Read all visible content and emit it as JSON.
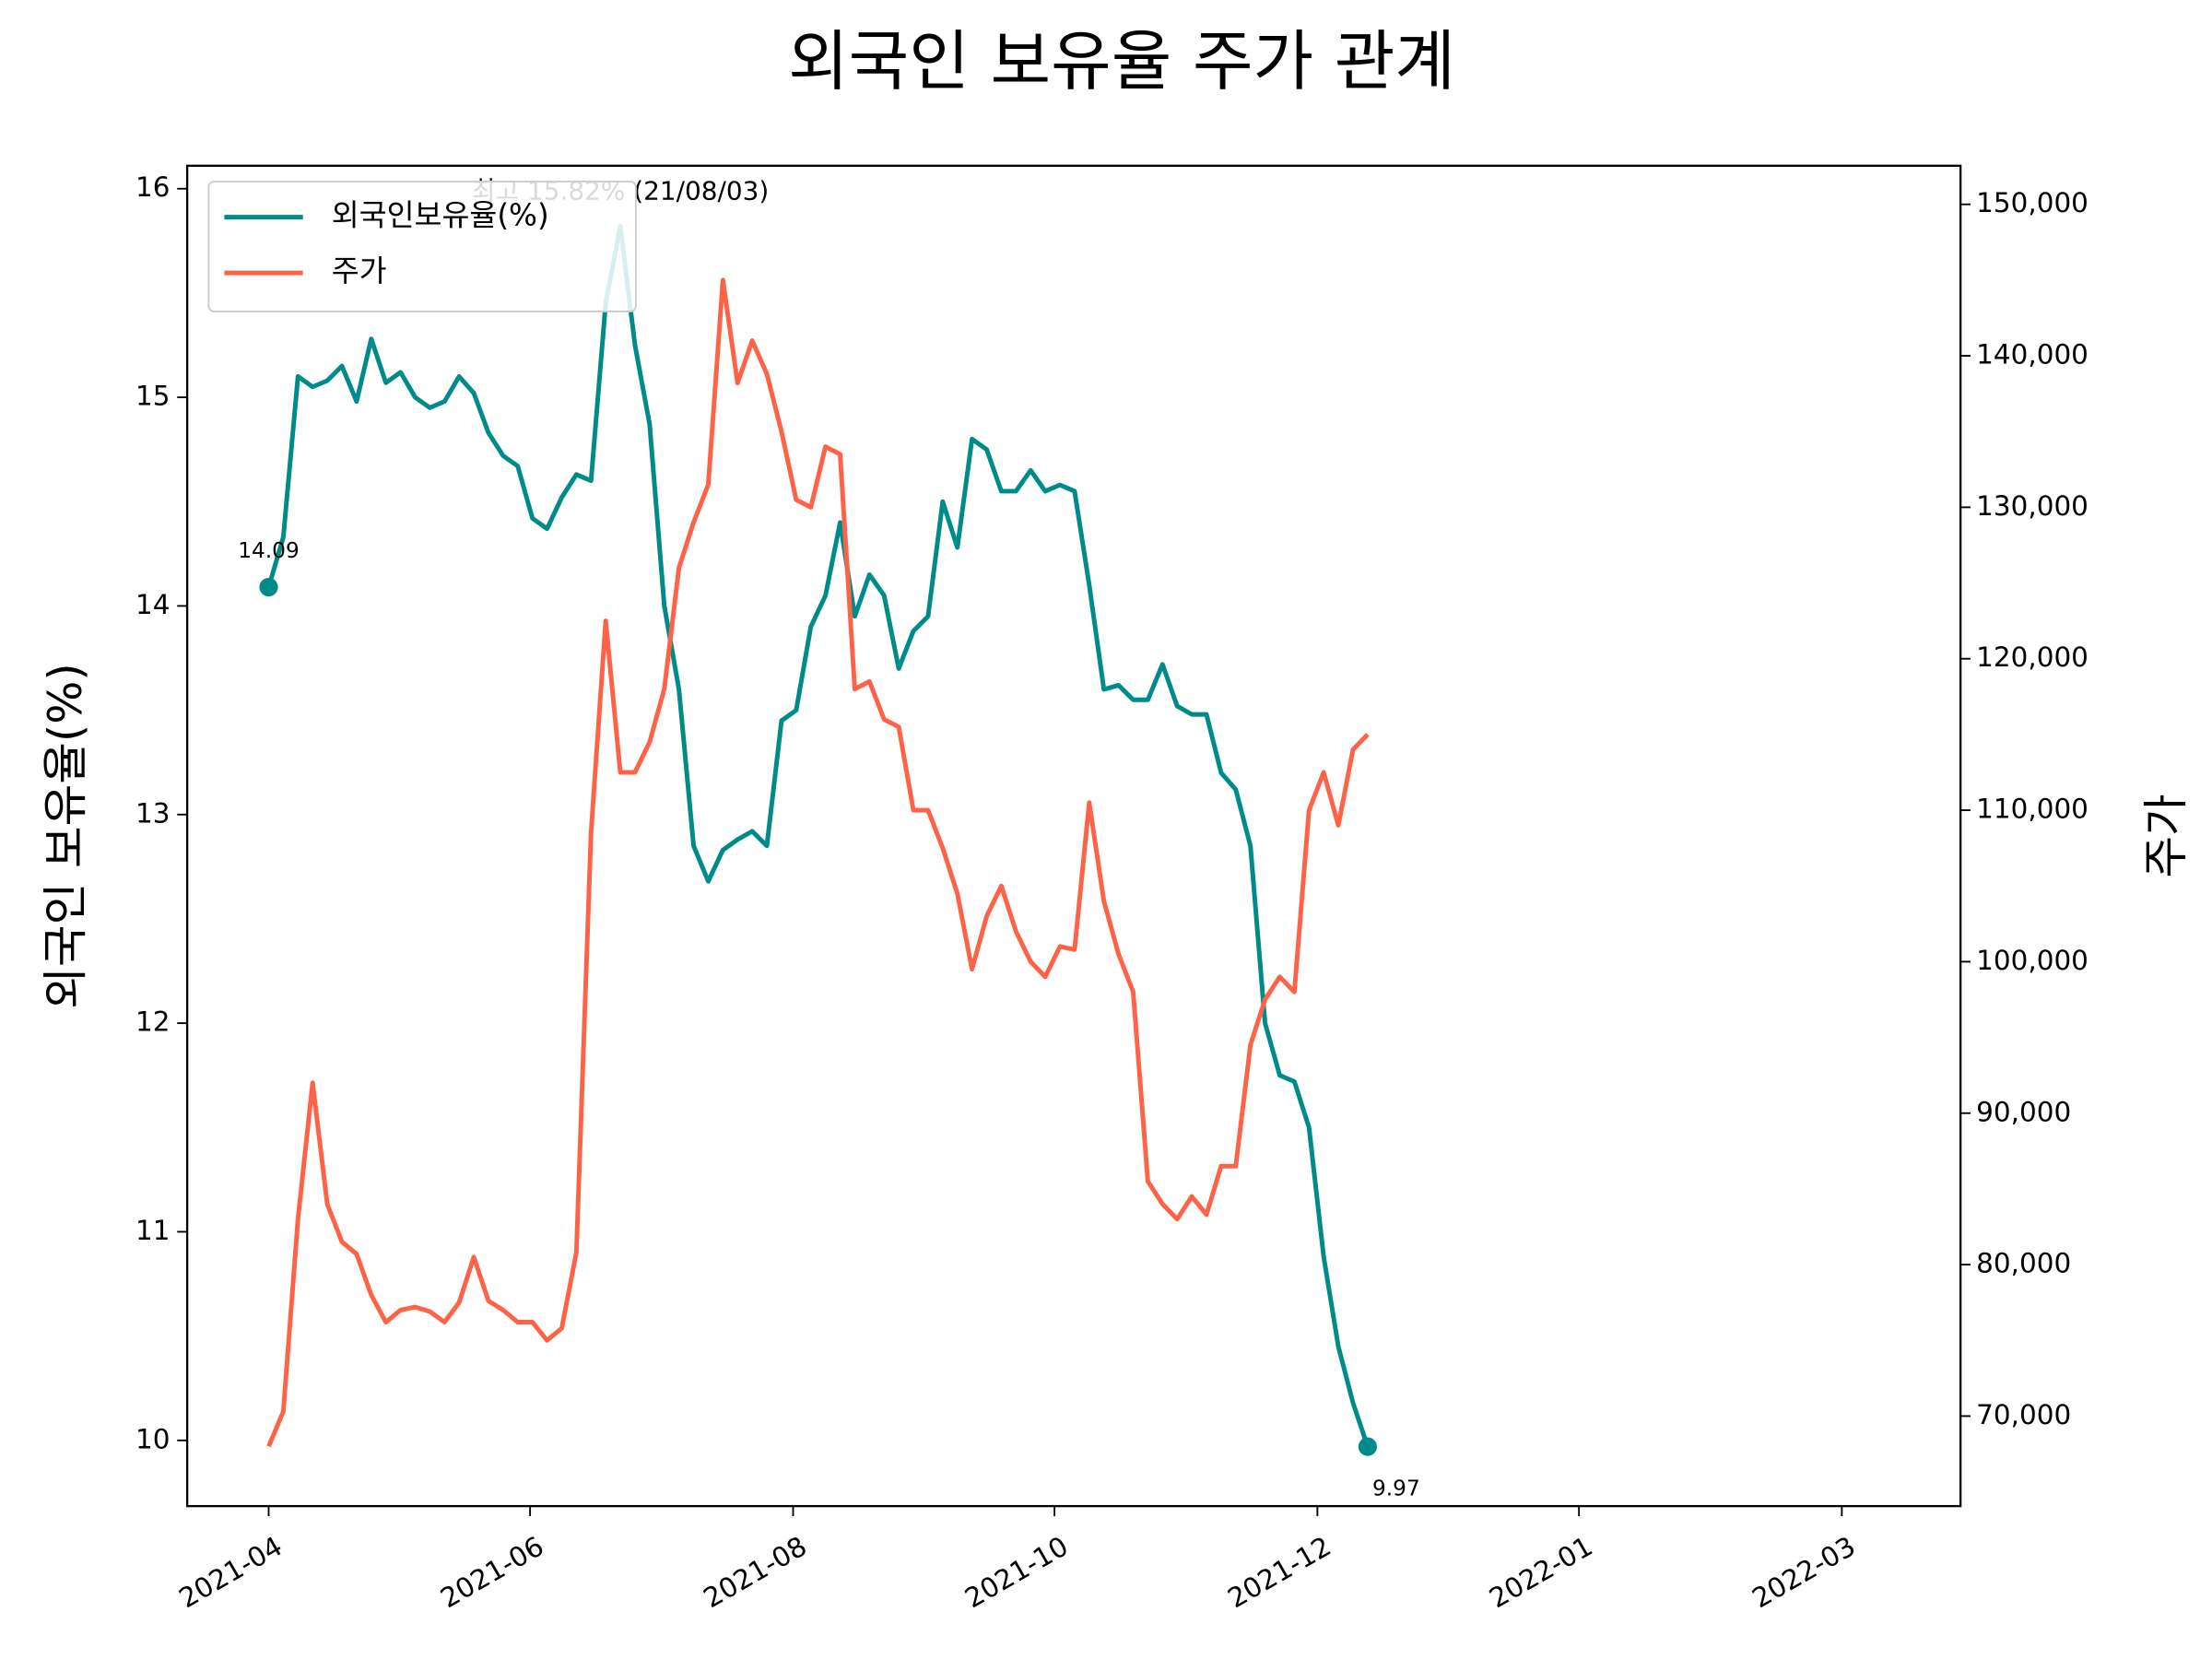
{
  "chart_data": {
    "type": "line",
    "title": "외국인 보유율 주가 관계",
    "ylabel": "외국인 보유율(%)",
    "y2label": "주가",
    "xlim": [
      -5.56,
      115.46
    ],
    "xticks": [
      {
        "value": 0,
        "label": "2021-04"
      },
      {
        "value": 17.84,
        "label": "2021-06"
      },
      {
        "value": 35.79,
        "label": "2021-08"
      },
      {
        "value": 53.63,
        "label": "2021-10"
      },
      {
        "value": 71.57,
        "label": "2021-12"
      },
      {
        "value": 89.42,
        "label": "2022-01"
      },
      {
        "value": 107.36,
        "label": "2022-03"
      }
    ],
    "ylim": [
      9.685,
      16.11
    ],
    "yticks": [
      10,
      11,
      12,
      13,
      14,
      15,
      16
    ],
    "y2lim": [
      64057,
      152547
    ],
    "y2ticks": [
      {
        "value": 70000,
        "label": "70,000"
      },
      {
        "value": 80000,
        "label": "80,000"
      },
      {
        "value": 90000,
        "label": "90,000"
      },
      {
        "value": 100000,
        "label": "100,000"
      },
      {
        "value": 110000,
        "label": "110,000"
      },
      {
        "value": 120000,
        "label": "120,000"
      },
      {
        "value": 130000,
        "label": "130,000"
      },
      {
        "value": 140000,
        "label": "140,000"
      },
      {
        "value": 150000,
        "label": "150,000"
      }
    ],
    "legend": "upper left",
    "series": [
      {
        "name": "외국인보유율(%)",
        "color": "#008b8b",
        "axis": "y",
        "endpoint_markers": true,
        "values": [
          14.09,
          14.33,
          15.1,
          15.05,
          15.08,
          15.15,
          14.98,
          15.28,
          15.07,
          15.12,
          15.0,
          14.95,
          14.98,
          15.1,
          15.02,
          14.83,
          14.72,
          14.67,
          14.42,
          14.37,
          14.52,
          14.63,
          14.6,
          15.45,
          15.82,
          15.25,
          14.87,
          14.0,
          13.6,
          12.85,
          12.68,
          12.83,
          12.88,
          12.92,
          12.85,
          13.45,
          13.5,
          13.9,
          14.05,
          14.4,
          13.95,
          14.15,
          14.05,
          13.7,
          13.88,
          13.95,
          14.5,
          14.28,
          14.8,
          14.75,
          14.55,
          14.55,
          14.65,
          14.55,
          14.58,
          14.55,
          14.1,
          13.6,
          13.62,
          13.55,
          13.55,
          13.72,
          13.52,
          13.48,
          13.48,
          13.2,
          13.12,
          12.85,
          12.0,
          11.75,
          11.72,
          11.5,
          10.88,
          10.45,
          10.18,
          9.97
        ]
      },
      {
        "name": "주가",
        "color": "#ff6347",
        "axis": "y2",
        "endpoint_markers": false,
        "values": [
          68000,
          70300,
          83000,
          92000,
          84000,
          81500,
          80700,
          78000,
          76200,
          77000,
          77200,
          76900,
          76200,
          77500,
          80500,
          77600,
          77000,
          76200,
          76200,
          75000,
          75800,
          80800,
          108500,
          122500,
          112500,
          112500,
          114500,
          118000,
          126000,
          129000,
          131500,
          145000,
          138200,
          141000,
          138800,
          135000,
          130500,
          130000,
          134000,
          133500,
          118000,
          118500,
          116000,
          115500,
          110000,
          110000,
          107500,
          104500,
          99500,
          103000,
          105000,
          102000,
          100000,
          99000,
          101000,
          100800,
          110500,
          104000,
          100500,
          98000,
          85500,
          84000,
          83000,
          84500,
          83300,
          86500,
          86500,
          94500,
          97500,
          99000,
          98000,
          110000,
          112500,
          109000,
          114000,
          115000
        ]
      }
    ],
    "annotations": [
      {
        "text": "14.09",
        "color": "#008b8b",
        "at": "start"
      },
      {
        "text": "9.97",
        "color": "#008b8b",
        "at": "end"
      },
      {
        "text": "최고 15.82% (21/08/03)",
        "color": "#ff0000",
        "at": "max"
      }
    ]
  }
}
